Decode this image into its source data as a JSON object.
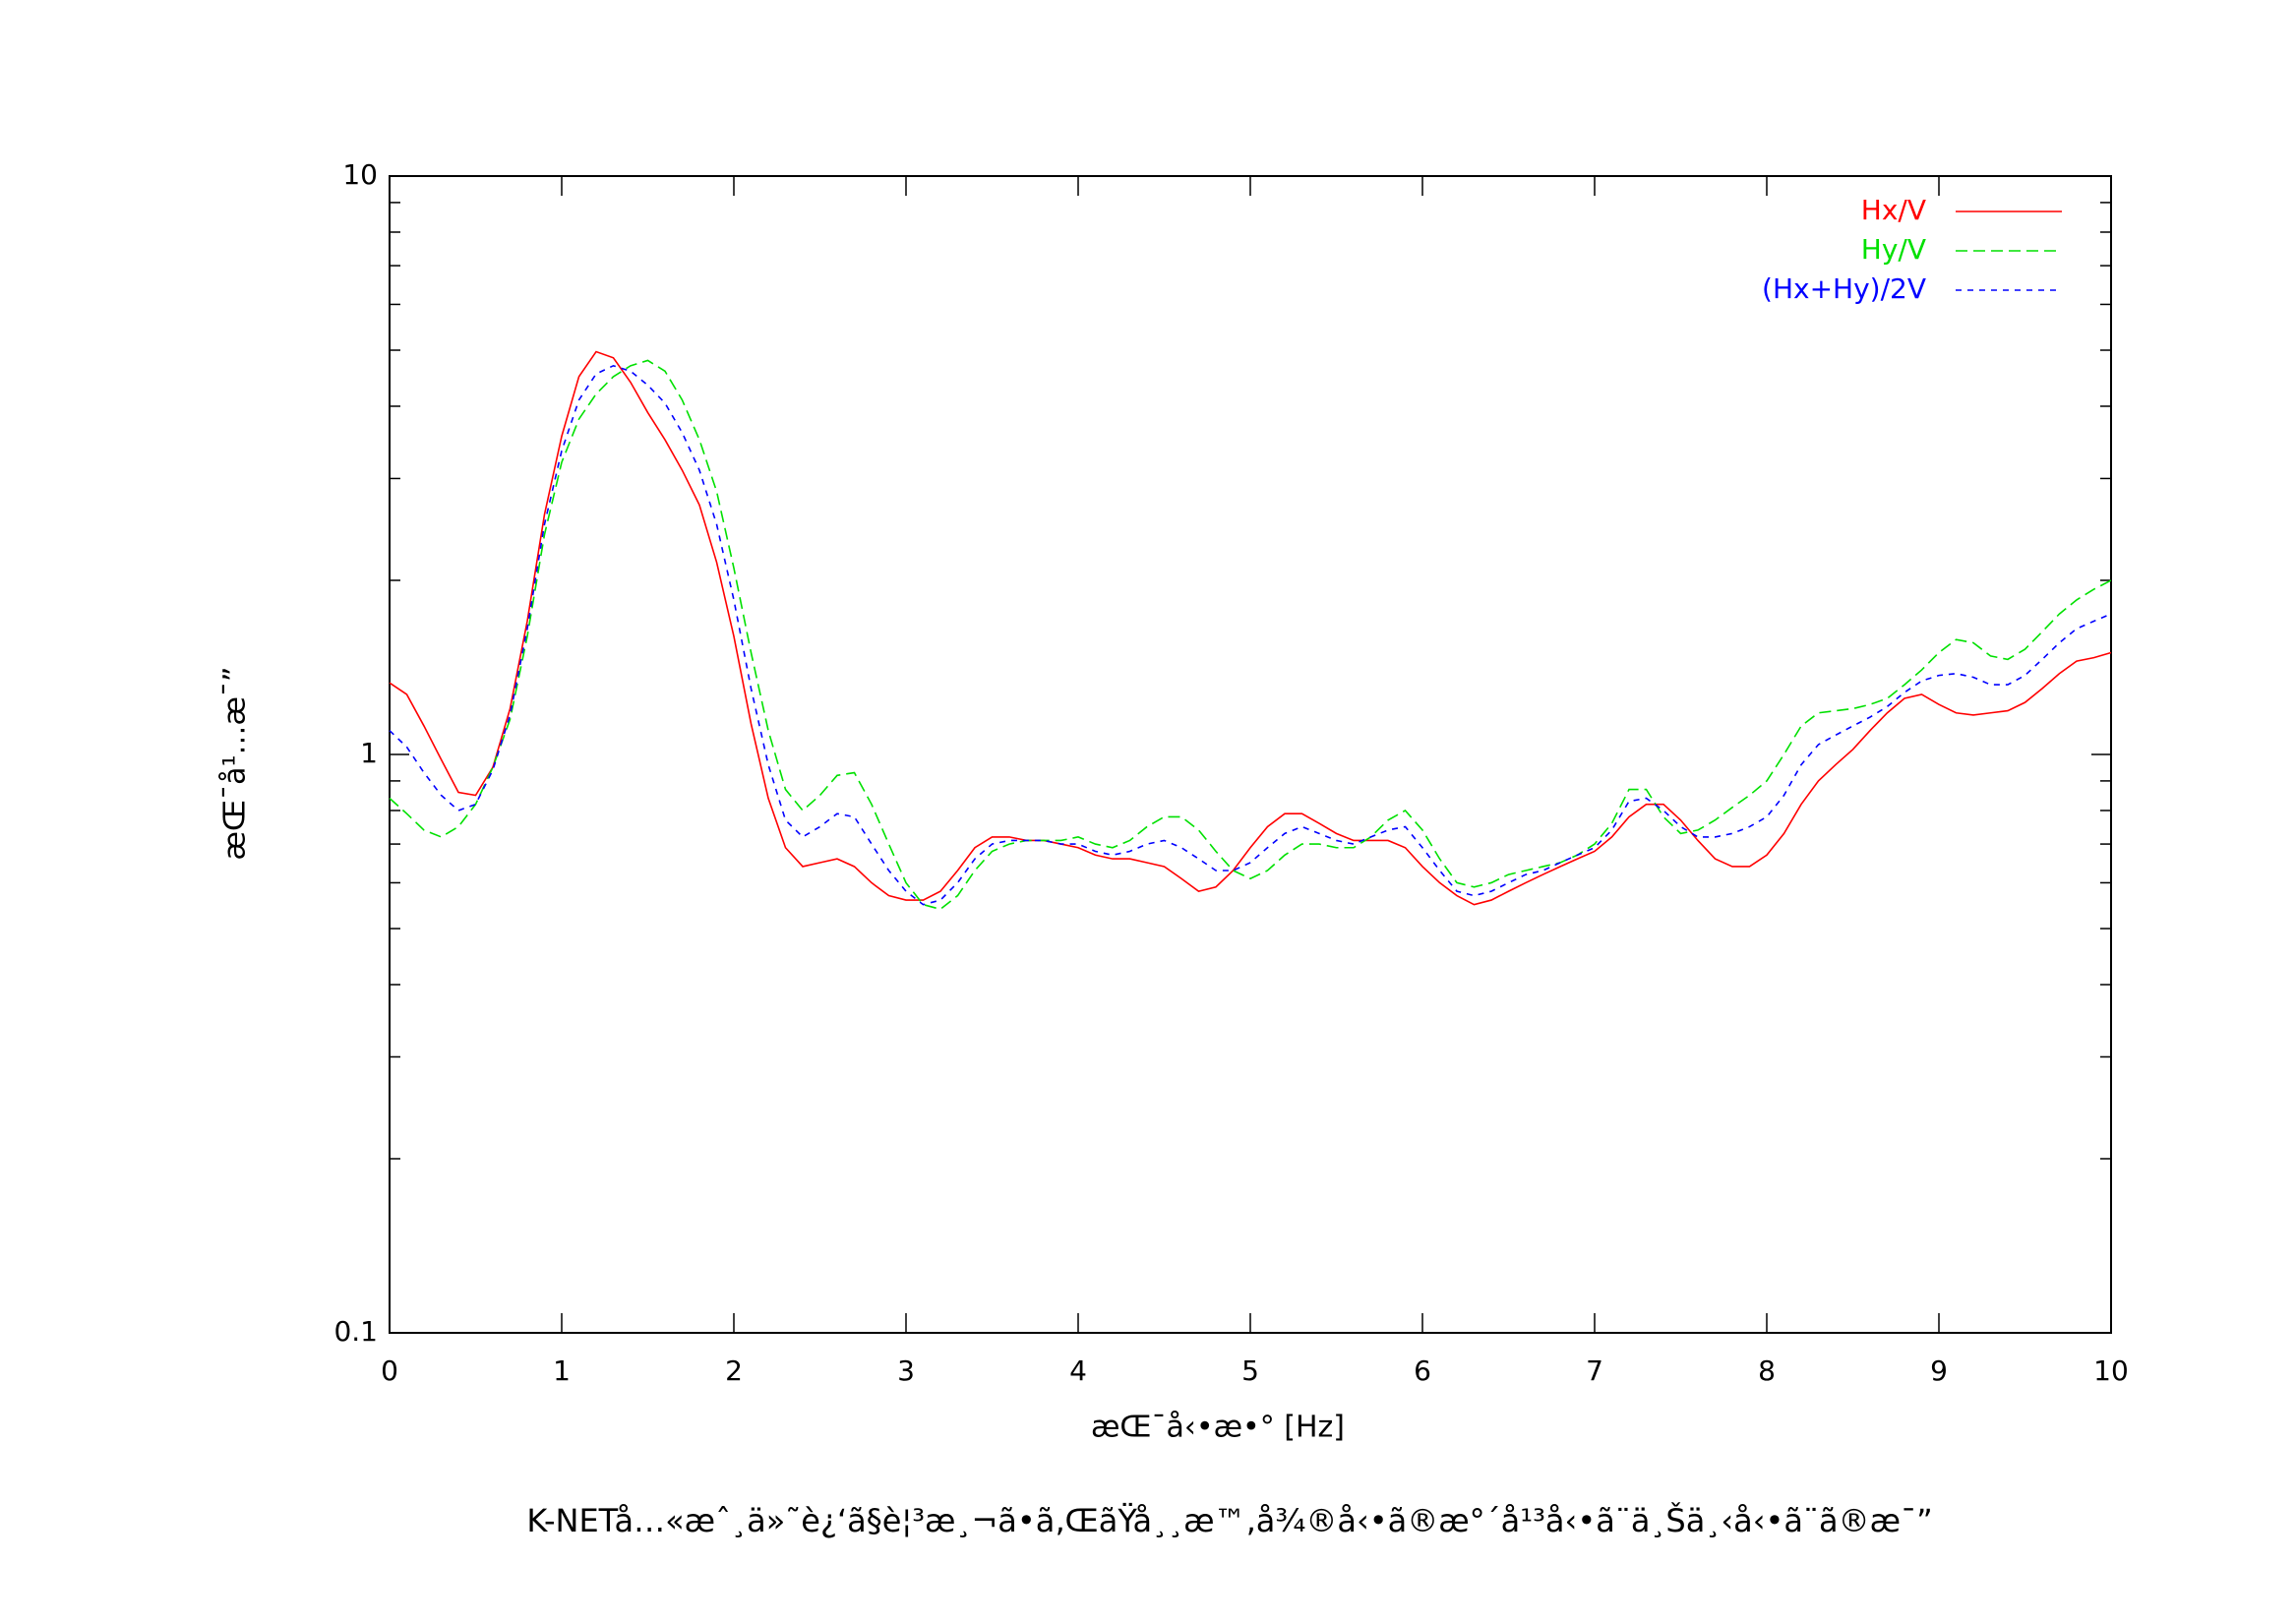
{
  "chart_data": {
    "type": "line",
    "title": "K-NETå…«æˆ¸ä»˜è¿‘ã§è¦³æ¸¬ã•ã‚ŒãŸå¸¸æ™‚å¾®å‹•ã®æ°´å¹³å‹•ã¨ä¸Šä¸‹å‹•ã¨ã®æ¯”",
    "x_label": "æŒ¯å‹•æ•° [Hz]",
    "y_label": "æŒ¯å¹…æ¯”",
    "log_y": true,
    "legend": "top-right",
    "xlim": [
      0,
      10
    ],
    "xticks": [
      0,
      1,
      2,
      3,
      4,
      5,
      6,
      7,
      8,
      9,
      10
    ],
    "ylim": [
      0.1,
      10
    ],
    "yticks": [
      0.1,
      1,
      10
    ],
    "x": [
      0,
      0.1,
      0.2,
      0.3,
      0.4,
      0.5,
      0.6,
      0.7,
      0.8,
      0.9,
      1,
      1.1,
      1.2,
      1.3,
      1.4,
      1.5,
      1.6,
      1.7,
      1.8,
      1.9,
      2,
      2.1,
      2.2,
      2.3,
      2.4,
      2.5,
      2.6,
      2.7,
      2.8,
      2.9,
      3,
      3.1,
      3.2,
      3.3,
      3.4,
      3.5,
      3.6,
      3.7,
      3.8,
      3.9,
      4,
      4.1,
      4.2,
      4.3,
      4.4,
      4.5,
      4.6,
      4.7,
      4.8,
      4.9,
      5,
      5.1,
      5.2,
      5.3,
      5.4,
      5.5,
      5.6,
      5.7,
      5.8,
      5.9,
      6,
      6.1,
      6.2,
      6.3,
      6.4,
      6.5,
      6.6,
      6.7,
      6.8,
      6.9,
      7,
      7.1,
      7.2,
      7.3,
      7.4,
      7.5,
      7.6,
      7.7,
      7.8,
      7.9,
      8,
      8.1,
      8.2,
      8.3,
      8.4,
      8.5,
      8.6,
      8.7,
      8.8,
      8.9,
      9,
      9.1,
      9.2,
      9.3,
      9.4,
      9.5,
      9.6,
      9.7,
      9.8,
      9.9,
      10
    ],
    "series": [
      {
        "name": "Hx/V",
        "color": "#ff0000",
        "dash": "none",
        "values": [
          1.33,
          1.27,
          1.12,
          0.98,
          0.86,
          0.85,
          0.95,
          1.2,
          1.7,
          2.6,
          3.55,
          4.5,
          4.97,
          4.85,
          4.4,
          3.9,
          3.5,
          3.1,
          2.7,
          2.15,
          1.6,
          1.13,
          0.84,
          0.69,
          0.64,
          0.65,
          0.66,
          0.64,
          0.6,
          0.57,
          0.56,
          0.56,
          0.58,
          0.63,
          0.69,
          0.72,
          0.72,
          0.71,
          0.71,
          0.7,
          0.69,
          0.67,
          0.66,
          0.66,
          0.65,
          0.64,
          0.61,
          0.58,
          0.59,
          0.63,
          0.69,
          0.75,
          0.79,
          0.79,
          0.76,
          0.73,
          0.71,
          0.71,
          0.71,
          0.69,
          0.64,
          0.6,
          0.57,
          0.55,
          0.56,
          0.58,
          0.6,
          0.62,
          0.64,
          0.66,
          0.68,
          0.72,
          0.78,
          0.82,
          0.82,
          0.77,
          0.71,
          0.66,
          0.64,
          0.64,
          0.67,
          0.73,
          0.82,
          0.9,
          0.96,
          1.02,
          1.1,
          1.18,
          1.25,
          1.27,
          1.22,
          1.18,
          1.17,
          1.18,
          1.19,
          1.23,
          1.3,
          1.38,
          1.45,
          1.47,
          1.5
        ]
      },
      {
        "name": "Hy/V",
        "color": "#00e000",
        "dash": "12 6",
        "values": [
          0.84,
          0.79,
          0.74,
          0.72,
          0.75,
          0.82,
          0.95,
          1.15,
          1.6,
          2.4,
          3.2,
          3.8,
          4.2,
          4.5,
          4.7,
          4.8,
          4.6,
          4.1,
          3.5,
          2.85,
          2.1,
          1.5,
          1.1,
          0.87,
          0.8,
          0.85,
          0.92,
          0.93,
          0.82,
          0.7,
          0.6,
          0.55,
          0.54,
          0.57,
          0.63,
          0.68,
          0.7,
          0.71,
          0.71,
          0.71,
          0.72,
          0.7,
          0.69,
          0.71,
          0.75,
          0.78,
          0.78,
          0.74,
          0.68,
          0.63,
          0.61,
          0.63,
          0.67,
          0.7,
          0.7,
          0.69,
          0.69,
          0.72,
          0.77,
          0.8,
          0.74,
          0.66,
          0.6,
          0.59,
          0.6,
          0.62,
          0.63,
          0.64,
          0.65,
          0.67,
          0.7,
          0.76,
          0.87,
          0.87,
          0.78,
          0.73,
          0.74,
          0.77,
          0.81,
          0.85,
          0.9,
          1.0,
          1.12,
          1.18,
          1.19,
          1.2,
          1.22,
          1.25,
          1.32,
          1.4,
          1.5,
          1.58,
          1.56,
          1.48,
          1.46,
          1.52,
          1.63,
          1.75,
          1.85,
          1.93,
          2.0
        ]
      },
      {
        "name": "(Hx+Hy)/2V",
        "color": "#0000ff",
        "dash": "6 6",
        "values": [
          1.1,
          1.03,
          0.93,
          0.85,
          0.8,
          0.82,
          0.94,
          1.17,
          1.65,
          2.5,
          3.35,
          4.1,
          4.55,
          4.7,
          4.6,
          4.35,
          4.05,
          3.6,
          3.1,
          2.5,
          1.85,
          1.3,
          0.96,
          0.77,
          0.72,
          0.75,
          0.79,
          0.78,
          0.7,
          0.63,
          0.58,
          0.55,
          0.56,
          0.6,
          0.66,
          0.7,
          0.71,
          0.71,
          0.71,
          0.7,
          0.7,
          0.68,
          0.67,
          0.68,
          0.7,
          0.71,
          0.69,
          0.66,
          0.63,
          0.63,
          0.65,
          0.69,
          0.73,
          0.75,
          0.73,
          0.71,
          0.7,
          0.72,
          0.74,
          0.75,
          0.69,
          0.63,
          0.58,
          0.57,
          0.58,
          0.6,
          0.62,
          0.63,
          0.65,
          0.67,
          0.69,
          0.74,
          0.83,
          0.84,
          0.8,
          0.75,
          0.72,
          0.72,
          0.73,
          0.75,
          0.78,
          0.85,
          0.96,
          1.04,
          1.08,
          1.12,
          1.16,
          1.21,
          1.28,
          1.34,
          1.37,
          1.38,
          1.36,
          1.32,
          1.32,
          1.37,
          1.46,
          1.56,
          1.65,
          1.7,
          1.75
        ]
      }
    ]
  }
}
